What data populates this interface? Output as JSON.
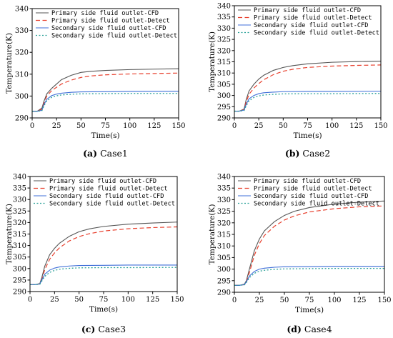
{
  "colors": {
    "cfd_primary": "#555555",
    "detect_primary": "#e8402e",
    "cfd_secondary": "#3f6fd8",
    "detect_secondary": "#2aa198"
  },
  "chart_data": [
    {
      "type": "line",
      "caption": {
        "label": "(a)",
        "name": "Case1"
      },
      "xlabel": "Time(s)",
      "ylabel": "Temperature(K)",
      "xlim": [
        0,
        150
      ],
      "ylim": [
        290,
        340
      ],
      "xticks": [
        "0",
        "25",
        "50",
        "75",
        "100",
        "125",
        "150"
      ],
      "yticks": [
        "290",
        "300",
        "310",
        "320",
        "330",
        "340"
      ],
      "legend_position": "top-left",
      "series": [
        {
          "name": "Primary side fluid outlet-CFD",
          "style": "solid",
          "color": "#555555",
          "x": [
            0,
            5,
            10,
            12,
            15,
            20,
            25,
            30,
            40,
            50,
            60,
            75,
            100,
            125,
            150
          ],
          "y": [
            293,
            293,
            294.5,
            297.5,
            301,
            303.5,
            305.5,
            307.5,
            309.5,
            310.8,
            311.3,
            311.7,
            312.1,
            312.3,
            312.5
          ]
        },
        {
          "name": "Primary side fluid outlet-Detect",
          "style": "dashed",
          "color": "#e8402e",
          "x": [
            0,
            5,
            10,
            12,
            15,
            20,
            25,
            30,
            40,
            50,
            60,
            75,
            100,
            125,
            150
          ],
          "y": [
            293,
            293,
            294,
            296.5,
            300,
            302.5,
            304,
            305.5,
            307.3,
            308.5,
            309.2,
            309.7,
            310.1,
            310.3,
            310.5
          ]
        },
        {
          "name": "Secondary side fluid outlet-CFD",
          "style": "solid",
          "color": "#3f6fd8",
          "x": [
            0,
            5,
            10,
            12,
            15,
            20,
            25,
            30,
            40,
            50,
            75,
            100,
            150
          ],
          "y": [
            293,
            293,
            293.5,
            296,
            298.5,
            300.2,
            300.9,
            301.3,
            301.7,
            301.9,
            302.0,
            302.1,
            302.2
          ]
        },
        {
          "name": "Secondary side fluid outlet-Detect",
          "style": "dotted",
          "color": "#2aa198",
          "x": [
            0,
            5,
            10,
            12,
            15,
            20,
            25,
            30,
            40,
            50,
            75,
            100,
            150
          ],
          "y": [
            293,
            293,
            293.3,
            295.5,
            297.8,
            299.4,
            300.1,
            300.5,
            300.8,
            301.0,
            301.1,
            301.2,
            301.2
          ]
        }
      ]
    },
    {
      "type": "line",
      "caption": {
        "label": "(b)",
        "name": "Case2"
      },
      "xlabel": "Time(s)",
      "ylabel": "Temperature(K)",
      "xlim": [
        0,
        150
      ],
      "ylim": [
        290,
        340
      ],
      "xticks": [
        "0",
        "25",
        "50",
        "75",
        "100",
        "125",
        "150"
      ],
      "yticks": [
        "290",
        "295",
        "300",
        "305",
        "310",
        "315",
        "320",
        "325",
        "330",
        "335",
        "340"
      ],
      "legend_position": "top-left",
      "series": [
        {
          "name": "Primary side fluid outlet-CFD",
          "style": "solid",
          "color": "#555555",
          "x": [
            0,
            5,
            10,
            12,
            15,
            20,
            25,
            30,
            40,
            50,
            60,
            75,
            100,
            125,
            150
          ],
          "y": [
            293,
            293,
            294,
            298,
            302,
            305,
            307.3,
            309,
            311.2,
            312.5,
            313.3,
            314.1,
            314.8,
            315.1,
            315.3
          ]
        },
        {
          "name": "Primary side fluid outlet-Detect",
          "style": "dashed",
          "color": "#e8402e",
          "x": [
            0,
            5,
            10,
            12,
            15,
            20,
            25,
            30,
            40,
            50,
            60,
            75,
            100,
            125,
            150
          ],
          "y": [
            293,
            293,
            293.7,
            297,
            300.5,
            303.3,
            305.3,
            307,
            309.3,
            310.8,
            311.7,
            312.5,
            313.1,
            313.4,
            313.6
          ]
        },
        {
          "name": "Secondary side fluid outlet-CFD",
          "style": "solid",
          "color": "#3f6fd8",
          "x": [
            0,
            5,
            10,
            12,
            15,
            20,
            25,
            30,
            40,
            50,
            75,
            100,
            150
          ],
          "y": [
            293,
            293,
            293.5,
            296,
            298.5,
            300,
            300.8,
            301.2,
            301.5,
            301.7,
            301.8,
            301.8,
            301.9
          ]
        },
        {
          "name": "Secondary side fluid outlet-Detect",
          "style": "dotted",
          "color": "#2aa198",
          "x": [
            0,
            5,
            10,
            12,
            15,
            20,
            25,
            30,
            40,
            50,
            75,
            100,
            150
          ],
          "y": [
            293,
            293,
            293.3,
            295.3,
            297.6,
            299.1,
            299.8,
            300.2,
            300.5,
            300.7,
            300.8,
            300.8,
            300.9
          ]
        }
      ]
    },
    {
      "type": "line",
      "caption": {
        "label": "(c)",
        "name": "Case3"
      },
      "xlabel": "Time(s)",
      "ylabel": "Temperature(K)",
      "xlim": [
        0,
        150
      ],
      "ylim": [
        290,
        340
      ],
      "xticks": [
        "0",
        "25",
        "50",
        "75",
        "100",
        "125",
        "150"
      ],
      "yticks": [
        "290",
        "295",
        "300",
        "305",
        "310",
        "315",
        "320",
        "325",
        "330",
        "335",
        "340"
      ],
      "legend_position": "top-left",
      "series": [
        {
          "name": "Primary side fluid outlet-CFD",
          "style": "solid",
          "color": "#555555",
          "x": [
            0,
            5,
            10,
            12,
            15,
            20,
            25,
            30,
            40,
            50,
            60,
            75,
            100,
            125,
            150
          ],
          "y": [
            293,
            293,
            293.5,
            296,
            301,
            306,
            308.8,
            311,
            314,
            316,
            317.2,
            318.3,
            319.3,
            319.8,
            320.2
          ]
        },
        {
          "name": "Primary side fluid outlet-Detect",
          "style": "dashed",
          "color": "#e8402e",
          "x": [
            0,
            5,
            10,
            12,
            15,
            20,
            25,
            30,
            40,
            50,
            60,
            75,
            100,
            125,
            150
          ],
          "y": [
            293,
            293,
            293.3,
            295,
            299.5,
            304,
            306.8,
            309,
            312,
            313.9,
            315.1,
            316.3,
            317.3,
            317.8,
            318.1
          ]
        },
        {
          "name": "Secondary side fluid outlet-CFD",
          "style": "solid",
          "color": "#3f6fd8",
          "x": [
            0,
            5,
            10,
            12,
            15,
            20,
            25,
            30,
            40,
            50,
            75,
            100,
            150
          ],
          "y": [
            293,
            293,
            293.3,
            295,
            297.5,
            299.3,
            300.2,
            300.7,
            301.1,
            301.3,
            301.4,
            301.5,
            301.5
          ]
        },
        {
          "name": "Secondary side fluid outlet-Detect",
          "style": "dotted",
          "color": "#2aa198",
          "x": [
            0,
            5,
            10,
            12,
            15,
            20,
            25,
            30,
            40,
            50,
            75,
            100,
            150
          ],
          "y": [
            293,
            293,
            293.2,
            294.5,
            296.6,
            298.3,
            299.2,
            299.7,
            300.1,
            300.3,
            300.4,
            300.4,
            300.5
          ]
        }
      ]
    },
    {
      "type": "line",
      "caption": {
        "label": "(d)",
        "name": "Case4"
      },
      "xlabel": "Time(s)",
      "ylabel": "Temperature(K)",
      "xlim": [
        0,
        150
      ],
      "ylim": [
        290,
        340
      ],
      "xticks": [
        "0",
        "25",
        "50",
        "75",
        "100",
        "125",
        "150"
      ],
      "yticks": [
        "290",
        "295",
        "300",
        "305",
        "310",
        "315",
        "320",
        "325",
        "330",
        "335",
        "340"
      ],
      "legend_position": "top-left",
      "series": [
        {
          "name": "Primary side fluid outlet-CFD",
          "style": "solid",
          "color": "#555555",
          "x": [
            0,
            5,
            10,
            12,
            15,
            20,
            25,
            30,
            40,
            50,
            60,
            75,
            100,
            125,
            150
          ],
          "y": [
            293,
            293,
            293.5,
            295,
            300,
            308,
            313,
            316.5,
            320.5,
            323.2,
            325,
            326.6,
            328.1,
            328.9,
            329.4
          ]
        },
        {
          "name": "Primary side fluid outlet-Detect",
          "style": "dashed",
          "color": "#e8402e",
          "x": [
            0,
            5,
            10,
            12,
            15,
            20,
            25,
            30,
            40,
            50,
            60,
            75,
            100,
            125,
            150
          ],
          "y": [
            293,
            293,
            293.3,
            294.5,
            298.5,
            306,
            311,
            314.5,
            318.5,
            321.2,
            323,
            324.7,
            326.1,
            326.9,
            327.3
          ]
        },
        {
          "name": "Secondary side fluid outlet-CFD",
          "style": "solid",
          "color": "#3f6fd8",
          "x": [
            0,
            5,
            10,
            12,
            15,
            20,
            25,
            30,
            40,
            50,
            75,
            100,
            150
          ],
          "y": [
            293,
            293,
            293.3,
            294.5,
            297,
            299,
            300,
            300.4,
            300.8,
            301.0,
            301.1,
            301.2,
            301.2
          ]
        },
        {
          "name": "Secondary side fluid outlet-Detect",
          "style": "dotted",
          "color": "#2aa198",
          "x": [
            0,
            5,
            10,
            12,
            15,
            20,
            25,
            30,
            40,
            50,
            75,
            100,
            150
          ],
          "y": [
            293,
            293,
            293.2,
            294.2,
            296.3,
            298.2,
            299.1,
            299.5,
            299.9,
            300.1,
            300.2,
            300.3,
            300.3
          ]
        }
      ]
    }
  ]
}
